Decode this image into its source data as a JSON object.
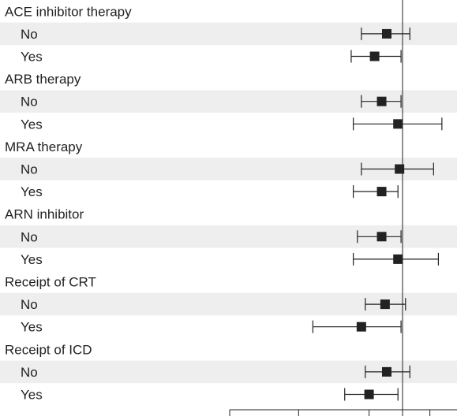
{
  "chart_data": {
    "type": "forest",
    "groups": [
      {
        "label": "ACE inhibitor therapy",
        "rows": [
          {
            "label": "No",
            "estimate": 0.9,
            "lower": 0.76,
            "upper": 1.05
          },
          {
            "label": "Yes",
            "estimate": 0.83,
            "lower": 0.71,
            "upper": 0.99
          }
        ]
      },
      {
        "label": "ARB therapy",
        "rows": [
          {
            "label": "No",
            "estimate": 0.87,
            "lower": 0.76,
            "upper": 0.99
          },
          {
            "label": "Yes",
            "estimate": 0.97,
            "lower": 0.72,
            "upper": 1.3
          }
        ]
      },
      {
        "label": "MRA therapy",
        "rows": [
          {
            "label": "No",
            "estimate": 0.98,
            "lower": 0.76,
            "upper": 1.23
          },
          {
            "label": "Yes",
            "estimate": 0.87,
            "lower": 0.72,
            "upper": 0.97
          }
        ]
      },
      {
        "label": "ARN inhibitor",
        "rows": [
          {
            "label": "No",
            "estimate": 0.87,
            "lower": 0.74,
            "upper": 0.99
          },
          {
            "label": "Yes",
            "estimate": 0.97,
            "lower": 0.72,
            "upper": 1.27
          }
        ]
      },
      {
        "label": "Receipt of CRT",
        "rows": [
          {
            "label": "No",
            "estimate": 0.89,
            "lower": 0.78,
            "upper": 1.02
          },
          {
            "label": "Yes",
            "estimate": 0.76,
            "lower": 0.55,
            "upper": 0.99
          }
        ]
      },
      {
        "label": "Receipt of ICD",
        "rows": [
          {
            "label": "No",
            "estimate": 0.9,
            "lower": 0.78,
            "upper": 1.05
          },
          {
            "label": "Yes",
            "estimate": 0.8,
            "lower": 0.68,
            "upper": 0.97
          }
        ]
      }
    ],
    "reference_value": 1.0,
    "x_axis_ticks": [
      0.5,
      0.8,
      1.0,
      1.2
    ],
    "x_axis_tick_labels_visible": false,
    "colors": {
      "row_stripe": "#eeeeee",
      "marker": "#222222",
      "line": "#222222"
    }
  }
}
